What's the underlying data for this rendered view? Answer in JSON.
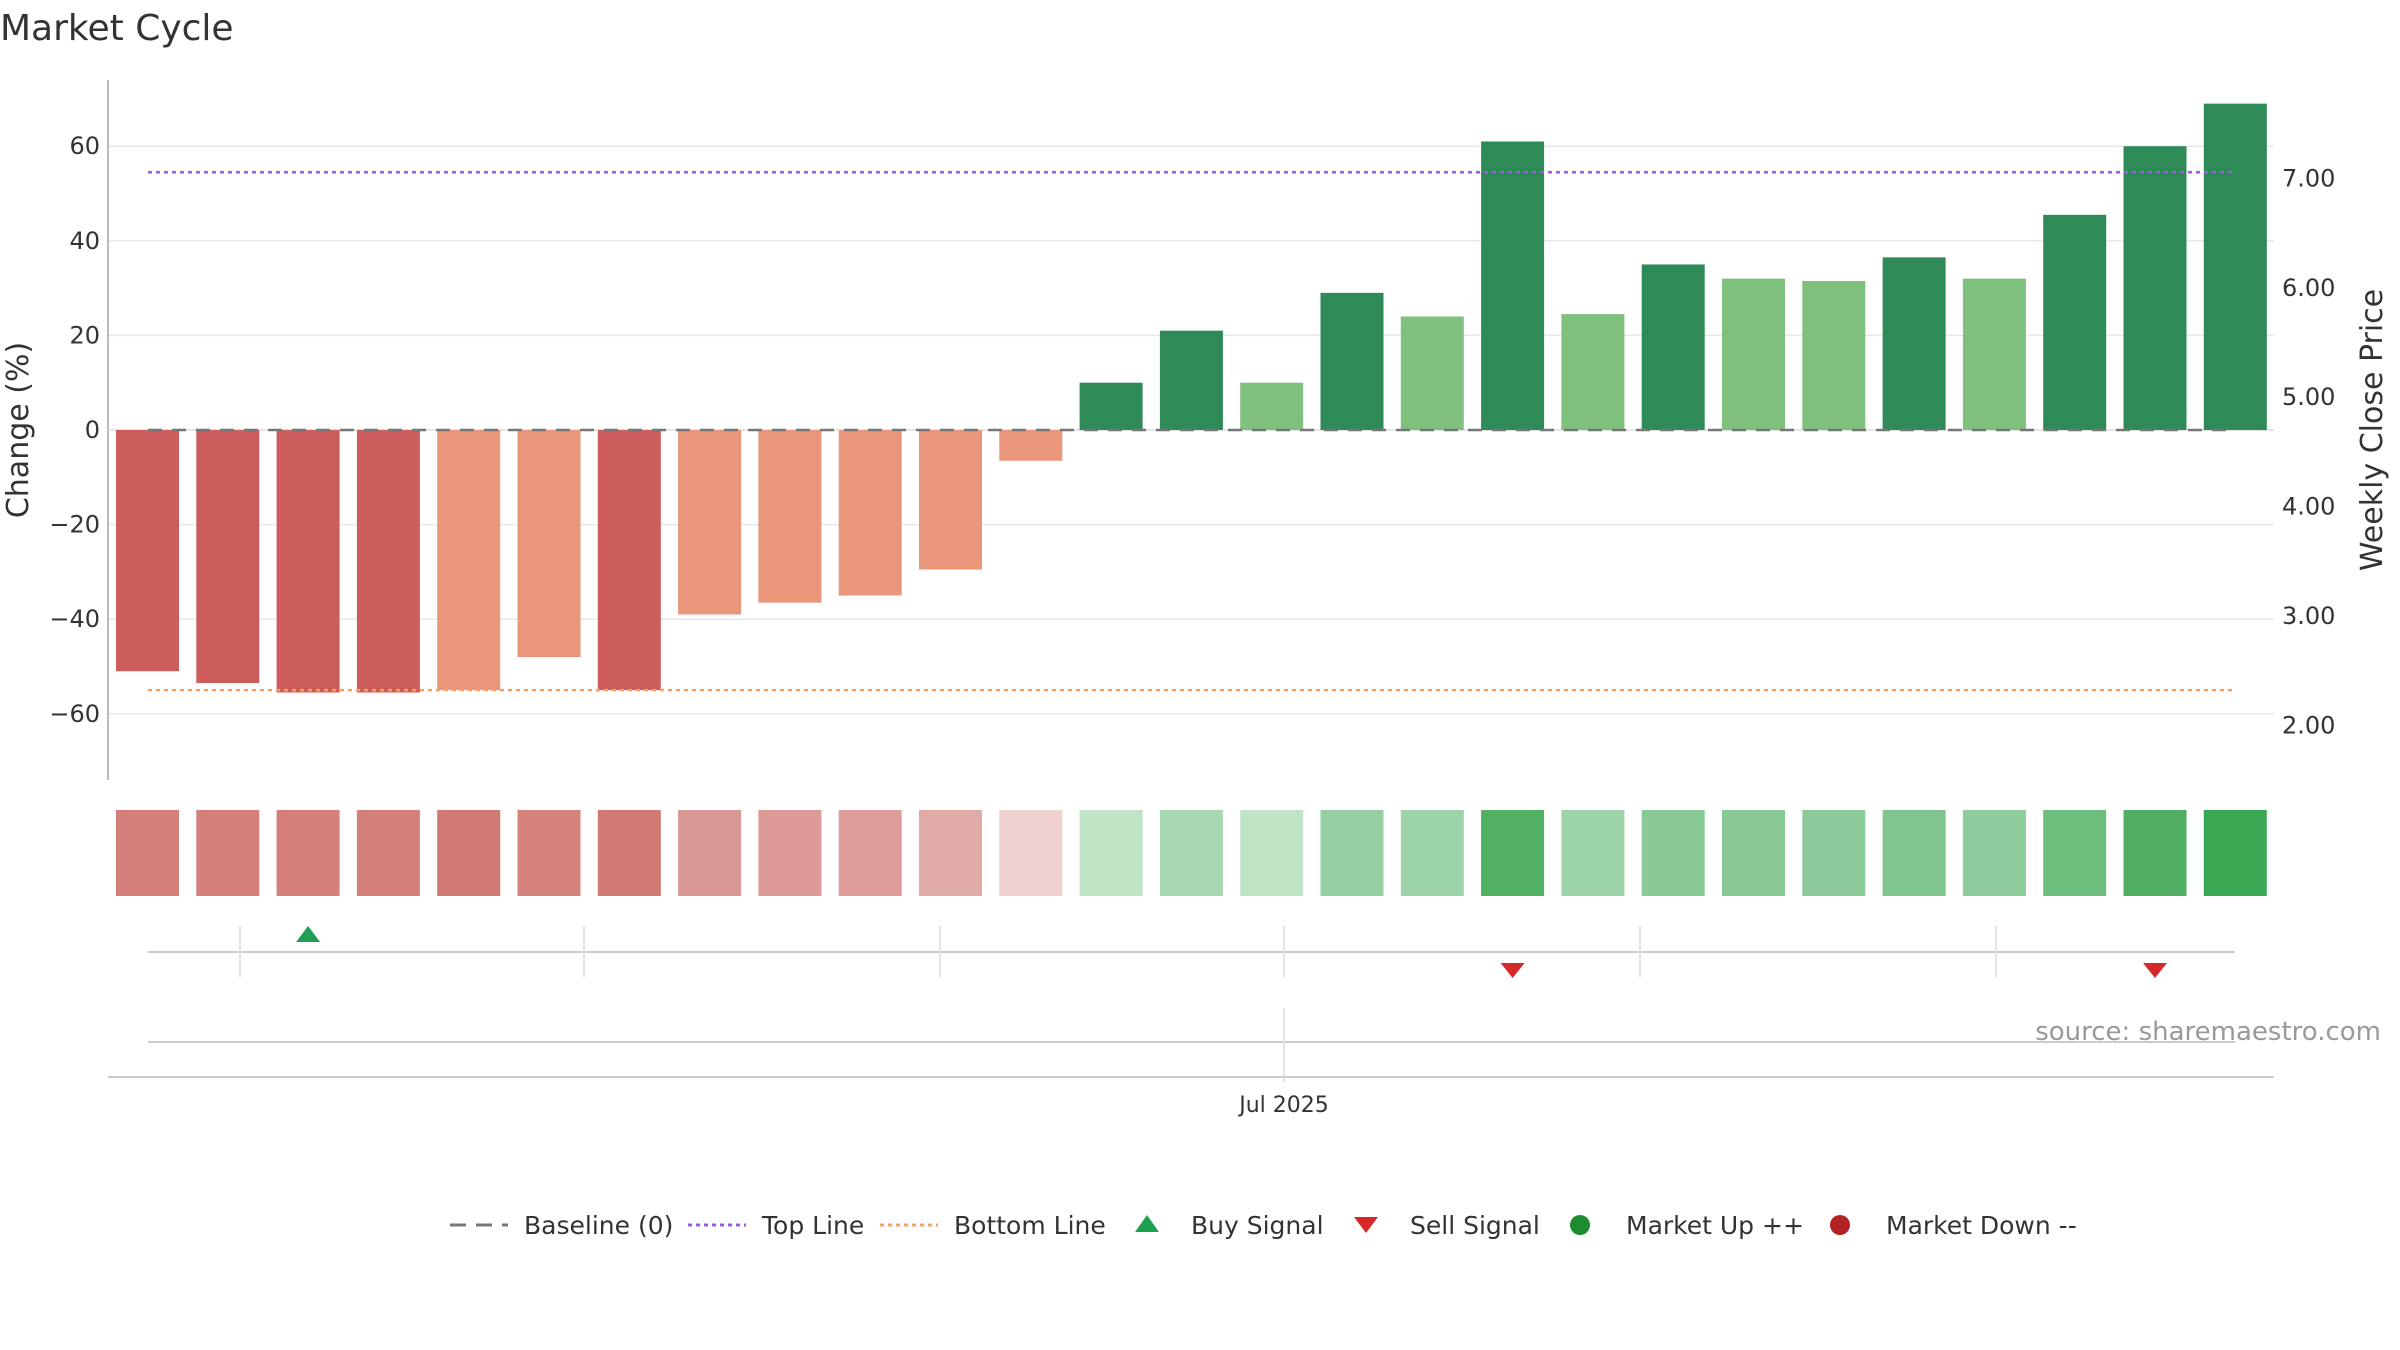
{
  "chart_data": {
    "type": "bar",
    "title": "Market Cycle",
    "ylabel": "Change (%)",
    "y2label": "Weekly Close Price",
    "ylim": [
      -74,
      74
    ],
    "yticks": [
      60,
      40,
      20,
      0,
      -20,
      -40,
      -60
    ],
    "ytick_labels": [
      "60",
      "40",
      "20",
      "0",
      "−20",
      "−40",
      "−60"
    ],
    "y2lim": [
      1.5,
      7.9
    ],
    "y2ticks": [
      7,
      6,
      5,
      4,
      3,
      2
    ],
    "y2tick_labels": [
      "7.00",
      "6.00",
      "5.00",
      "4.00",
      "3.00",
      "2.00"
    ],
    "x_label_text": "Jul 2025",
    "source_text": "source: sharemaestro.com",
    "top_line": 54.5,
    "bottom_line": -55,
    "baseline": 0,
    "values": [
      -51,
      -53.5,
      -55.5,
      -55.5,
      -55,
      -48,
      -55,
      -39,
      -36.5,
      -35,
      -29.5,
      -6.5,
      10,
      21,
      10,
      29,
      24,
      61,
      24.5,
      35,
      32,
      31.5,
      36.5,
      32,
      45.5,
      60,
      69
    ],
    "bar_colors": [
      "#cd5c5c",
      "#cd5c5c",
      "#cd5c5c",
      "#cd5c5c",
      "#e9967a",
      "#e9967a",
      "#cd5c5c",
      "#e9967a",
      "#e9967a",
      "#e9967a",
      "#e9967a",
      "#e9967a",
      "#2e8b57",
      "#2e8b57",
      "#80c07d",
      "#2e8b57",
      "#80c07d",
      "#2e8b57",
      "#80c07d",
      "#2e8b57",
      "#80c07d",
      "#80c07d",
      "#2e8b57",
      "#80c07d",
      "#2e8b57",
      "#2e8b57",
      "#2e8b57"
    ],
    "heat_colors": [
      "#d47f7a",
      "#d47f7a",
      "#d47f7a",
      "#d47f7a",
      "#d17a74",
      "#d6837e",
      "#d17a74",
      "#da9894",
      "#dd9a97",
      "#de9d99",
      "#e0aaa7",
      "#f0d1d0",
      "#c0e4c6",
      "#a7d8b1",
      "#c0e4c6",
      "#96d0a2",
      "#9dd3a8",
      "#52b062",
      "#9dd3a8",
      "#88c996",
      "#88c996",
      "#8ccb99",
      "#7fc58e",
      "#8fcc9b",
      "#6dbd7d",
      "#4fae61",
      "#3aa752"
    ],
    "buy_signals": [
      2
    ],
    "sell_signals": [
      17,
      25
    ],
    "legend": [
      {
        "label": "Baseline (0)",
        "marker": "dash",
        "color": "#777777"
      },
      {
        "label": "Top Line",
        "marker": "dotted",
        "color": "#9b59e6"
      },
      {
        "label": "Bottom Line",
        "marker": "dotted",
        "color": "#f4a460"
      },
      {
        "label": "Buy Signal",
        "marker": "triangle-up",
        "color": "#1fa050"
      },
      {
        "label": "Sell Signal",
        "marker": "triangle-down",
        "color": "#d62828"
      },
      {
        "label": "Market Up ++",
        "marker": "circle",
        "color": "#1e8b2e"
      },
      {
        "label": "Market Down --",
        "marker": "circle",
        "color": "#b22222"
      }
    ]
  }
}
